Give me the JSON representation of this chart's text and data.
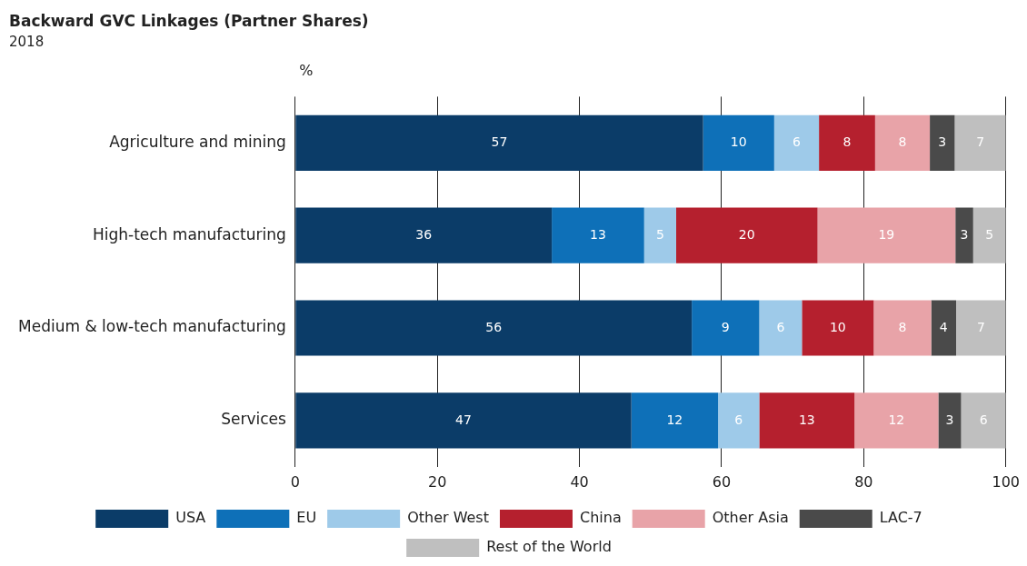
{
  "chart_data": {
    "type": "bar",
    "orientation": "horizontal",
    "stacked": true,
    "title": "Backward GVC Linkages (Partner Shares)",
    "subtitle": "2018",
    "xlabel": "%",
    "categories": [
      "Agriculture and mining",
      "High-tech manufacturing",
      "Medium & low-tech manufacturing",
      "Services"
    ],
    "series": [
      {
        "name": "USA",
        "color": "#0b3c68",
        "values": [
          57.4,
          36.1,
          55.8,
          47.3
        ],
        "value_labels": [
          "57",
          "36",
          "56",
          "47"
        ]
      },
      {
        "name": "EU",
        "color": "#0e70b8",
        "values": [
          10.0,
          13.0,
          9.5,
          12.2
        ],
        "value_labels": [
          "10",
          "13",
          "9",
          "12"
        ]
      },
      {
        "name": "Other West",
        "color": "#9ecae9",
        "values": [
          6.3,
          4.5,
          6.0,
          5.8
        ],
        "value_labels": [
          "6",
          "5",
          "6",
          "6"
        ]
      },
      {
        "name": "China",
        "color": "#b5202e",
        "values": [
          7.9,
          19.9,
          10.1,
          13.4
        ],
        "value_labels": [
          "8",
          "20",
          "10",
          "13"
        ]
      },
      {
        "name": "Other Asia",
        "color": "#e8a3a8",
        "values": [
          7.7,
          19.4,
          8.1,
          11.8
        ],
        "value_labels": [
          "8",
          "19",
          "8",
          "12"
        ]
      },
      {
        "name": "LAC-7",
        "color": "#4a4a4a",
        "values": [
          3.5,
          2.5,
          3.5,
          3.2
        ],
        "value_labels": [
          "3",
          "3",
          "4",
          "3"
        ]
      },
      {
        "name": "Rest of the World",
        "color": "#bfbfbf",
        "values": [
          7.2,
          4.6,
          7.0,
          6.3
        ],
        "value_labels": [
          "7",
          "5",
          "7",
          "6"
        ]
      }
    ],
    "xlim": [
      0,
      100
    ],
    "xticks": [
      0,
      20,
      40,
      60,
      80,
      100
    ],
    "grid": "x",
    "legend": "bottom"
  }
}
